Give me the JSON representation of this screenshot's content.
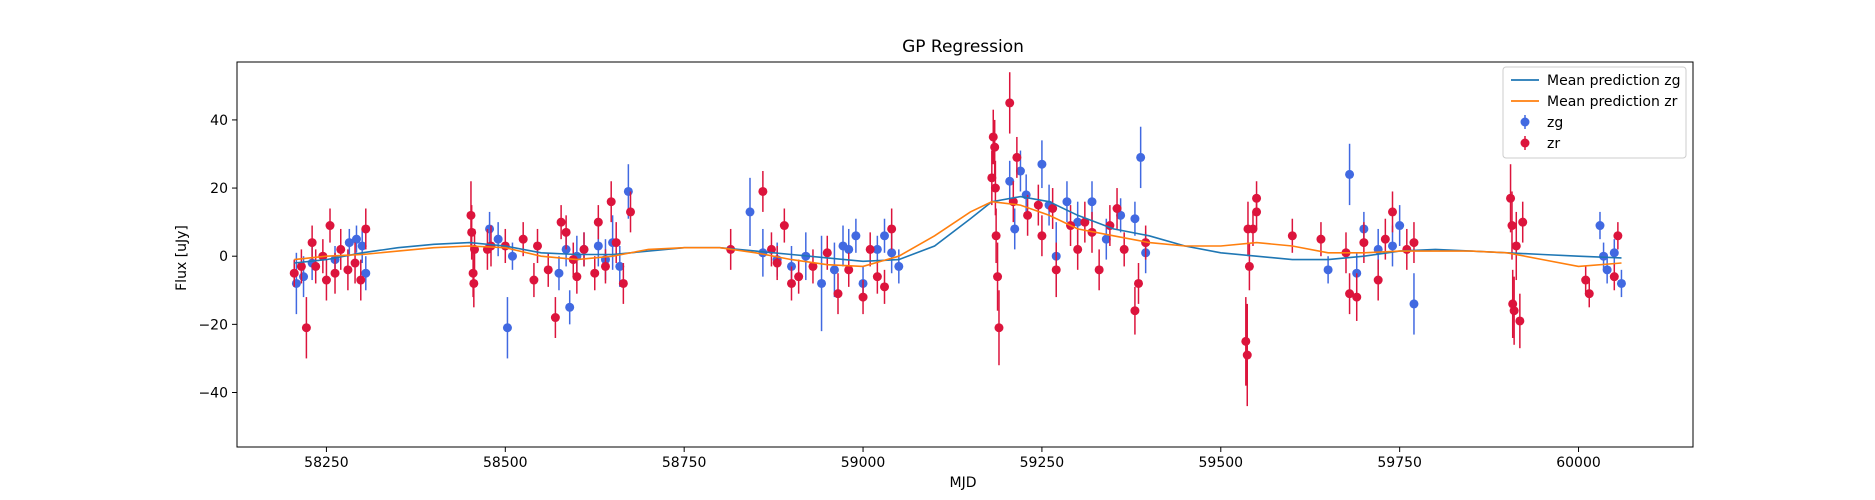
{
  "chart_data": {
    "type": "scatter",
    "title": "GP Regression",
    "xlabel": "MJD",
    "ylabel": "Flux [uJy]",
    "xlim": [
      58125,
      60160
    ],
    "ylim": [
      -56,
      57
    ],
    "x_ticks": [
      58250,
      58500,
      58750,
      59000,
      59250,
      59500,
      59750,
      60000
    ],
    "y_ticks": [
      -40,
      -20,
      0,
      20,
      40
    ],
    "grid": false,
    "legend_position": "top-right",
    "lines": [
      {
        "name": "Mean prediction zg",
        "color": "#1f77b4",
        "x": [
          58205,
          58250,
          58300,
          58350,
          58400,
          58450,
          58500,
          58550,
          58600,
          58650,
          58700,
          58750,
          58800,
          58850,
          58900,
          58950,
          59000,
          59050,
          59100,
          59150,
          59180,
          59220,
          59260,
          59300,
          59350,
          59400,
          59450,
          59500,
          59550,
          59600,
          59650,
          59700,
          59750,
          59800,
          59850,
          59900,
          59950,
          60000,
          60060
        ],
        "y": [
          -2,
          -1,
          1,
          2.5,
          3.5,
          4,
          3,
          1,
          0.5,
          0.5,
          1.5,
          2.5,
          2.5,
          1.5,
          0.5,
          -0.5,
          -1.5,
          -1,
          3,
          11,
          16,
          17.5,
          16,
          12,
          8,
          6,
          3,
          1,
          0,
          -1,
          -1,
          0,
          1.5,
          2,
          1.5,
          1,
          0.5,
          0,
          -0.5
        ]
      },
      {
        "name": "Mean prediction zr",
        "color": "#ff7f0e",
        "x": [
          58205,
          58250,
          58300,
          58350,
          58400,
          58450,
          58500,
          58550,
          58600,
          58650,
          58700,
          58750,
          58800,
          58850,
          58900,
          58950,
          59000,
          59050,
          59100,
          59150,
          59180,
          59220,
          59260,
          59300,
          59350,
          59400,
          59450,
          59500,
          59550,
          59600,
          59650,
          59700,
          59750,
          59800,
          59850,
          59900,
          59950,
          60000,
          60060
        ],
        "y": [
          -1,
          0,
          0.5,
          1.5,
          2.5,
          3,
          2.5,
          0,
          -1,
          0,
          2,
          2.5,
          2.5,
          1,
          -1,
          -2.5,
          -3,
          0,
          6,
          13,
          16,
          15,
          12,
          8,
          6,
          4,
          3,
          3,
          4,
          3,
          1,
          1,
          1.5,
          1.5,
          1.5,
          1,
          -1,
          -3,
          -2
        ]
      }
    ],
    "series": [
      {
        "name": "zg",
        "color": "#4169e1",
        "points": [
          [
            58208,
            -8,
            9
          ],
          [
            58218,
            -6,
            6
          ],
          [
            58230,
            -2,
            5
          ],
          [
            58262,
            -1,
            4
          ],
          [
            58282,
            4,
            4
          ],
          [
            58292,
            5,
            4
          ],
          [
            58300,
            3,
            5
          ],
          [
            58305,
            -5,
            5
          ],
          [
            58478,
            8,
            5
          ],
          [
            58490,
            5,
            5
          ],
          [
            58503,
            -21,
            9
          ],
          [
            58510,
            0,
            4
          ],
          [
            58575,
            -5,
            5
          ],
          [
            58585,
            2,
            5
          ],
          [
            58590,
            -15,
            5
          ],
          [
            58600,
            0,
            6
          ],
          [
            58610,
            2,
            5
          ],
          [
            58630,
            3,
            6
          ],
          [
            58640,
            -1,
            6
          ],
          [
            58650,
            4,
            8
          ],
          [
            58660,
            -3,
            6
          ],
          [
            58672,
            19,
            8
          ],
          [
            58842,
            13,
            10
          ],
          [
            58860,
            1,
            7
          ],
          [
            58880,
            -1,
            5
          ],
          [
            58900,
            -3,
            6
          ],
          [
            58920,
            0,
            7
          ],
          [
            58942,
            -8,
            14
          ],
          [
            58960,
            -4,
            8
          ],
          [
            58972,
            3,
            6
          ],
          [
            58980,
            2,
            6
          ],
          [
            58990,
            6,
            5
          ],
          [
            59000,
            -8,
            5
          ],
          [
            59020,
            2,
            4
          ],
          [
            59030,
            6,
            5
          ],
          [
            59040,
            1,
            6
          ],
          [
            59050,
            -3,
            5
          ],
          [
            59205,
            22,
            6
          ],
          [
            59212,
            8,
            6
          ],
          [
            59220,
            25,
            6
          ],
          [
            59228,
            18,
            6
          ],
          [
            59250,
            27,
            7
          ],
          [
            59260,
            15,
            6
          ],
          [
            59270,
            0,
            10
          ],
          [
            59285,
            16,
            6
          ],
          [
            59300,
            10,
            6
          ],
          [
            59320,
            16,
            6
          ],
          [
            59340,
            5,
            6
          ],
          [
            59360,
            12,
            5
          ],
          [
            59380,
            11,
            5
          ],
          [
            59388,
            29,
            9
          ],
          [
            59395,
            1,
            6
          ],
          [
            59650,
            -4,
            4
          ],
          [
            59680,
            24,
            9
          ],
          [
            59690,
            -5,
            6
          ],
          [
            59700,
            8,
            5
          ],
          [
            59720,
            2,
            6
          ],
          [
            59740,
            3,
            6
          ],
          [
            59750,
            9,
            6
          ],
          [
            59770,
            -14,
            9
          ],
          [
            60030,
            9,
            4
          ],
          [
            60035,
            0,
            4
          ],
          [
            60040,
            -4,
            4
          ],
          [
            60050,
            1,
            4
          ],
          [
            60060,
            -8,
            4
          ]
        ]
      },
      {
        "name": "zr",
        "color": "#dc143c",
        "points": [
          [
            58205,
            -5,
            4
          ],
          [
            58215,
            -3,
            5
          ],
          [
            58222,
            -21,
            9
          ],
          [
            58230,
            4,
            5
          ],
          [
            58235,
            -3,
            5
          ],
          [
            58245,
            0,
            5
          ],
          [
            58250,
            -7,
            6
          ],
          [
            58255,
            9,
            5
          ],
          [
            58262,
            -5,
            6
          ],
          [
            58270,
            2,
            6
          ],
          [
            58280,
            -4,
            6
          ],
          [
            58290,
            -2,
            6
          ],
          [
            58298,
            -7,
            6
          ],
          [
            58305,
            8,
            6
          ],
          [
            58452,
            12,
            10
          ],
          [
            58453,
            7,
            8
          ],
          [
            58455,
            -5,
            7
          ],
          [
            58456,
            -8,
            7
          ],
          [
            58457,
            2,
            6
          ],
          [
            58475,
            2,
            6
          ],
          [
            58480,
            3,
            6
          ],
          [
            58500,
            3,
            5
          ],
          [
            58525,
            5,
            5
          ],
          [
            58540,
            -7,
            5
          ],
          [
            58545,
            3,
            5
          ],
          [
            58560,
            -4,
            5
          ],
          [
            58570,
            -18,
            6
          ],
          [
            58578,
            10,
            5
          ],
          [
            58585,
            7,
            5
          ],
          [
            58595,
            -1,
            5
          ],
          [
            58600,
            -6,
            5
          ],
          [
            58610,
            2,
            5
          ],
          [
            58625,
            -5,
            5
          ],
          [
            58630,
            10,
            5
          ],
          [
            58640,
            -3,
            5
          ],
          [
            58648,
            16,
            6
          ],
          [
            58655,
            4,
            6
          ],
          [
            58665,
            -8,
            6
          ],
          [
            58675,
            13,
            6
          ],
          [
            58815,
            2,
            6
          ],
          [
            58860,
            19,
            6
          ],
          [
            58872,
            2,
            5
          ],
          [
            58880,
            -2,
            5
          ],
          [
            58890,
            9,
            5
          ],
          [
            58900,
            -8,
            5
          ],
          [
            58910,
            -6,
            5
          ],
          [
            58930,
            -3,
            5
          ],
          [
            58950,
            1,
            5
          ],
          [
            58965,
            -11,
            6
          ],
          [
            58980,
            -4,
            5
          ],
          [
            59000,
            -12,
            5
          ],
          [
            59010,
            2,
            5
          ],
          [
            59020,
            -6,
            5
          ],
          [
            59030,
            -9,
            5
          ],
          [
            59040,
            8,
            6
          ],
          [
            59180,
            23,
            8
          ],
          [
            59182,
            35,
            8
          ],
          [
            59184,
            32,
            8
          ],
          [
            59185,
            20,
            8
          ],
          [
            59186,
            6,
            8
          ],
          [
            59188,
            -6,
            10
          ],
          [
            59190,
            -21,
            11
          ],
          [
            59205,
            45,
            9
          ],
          [
            59210,
            16,
            6
          ],
          [
            59215,
            29,
            6
          ],
          [
            59230,
            12,
            6
          ],
          [
            59245,
            15,
            6
          ],
          [
            59250,
            6,
            6
          ],
          [
            59265,
            14,
            6
          ],
          [
            59270,
            -4,
            8
          ],
          [
            59290,
            9,
            6
          ],
          [
            59300,
            2,
            6
          ],
          [
            59310,
            10,
            6
          ],
          [
            59320,
            7,
            6
          ],
          [
            59330,
            -4,
            6
          ],
          [
            59345,
            9,
            6
          ],
          [
            59355,
            14,
            6
          ],
          [
            59365,
            2,
            5
          ],
          [
            59380,
            -16,
            7
          ],
          [
            59385,
            -8,
            6
          ],
          [
            59395,
            4,
            5
          ],
          [
            59535,
            -25,
            13
          ],
          [
            59537,
            -29,
            15
          ],
          [
            59538,
            8,
            8
          ],
          [
            59540,
            -3,
            7
          ],
          [
            59545,
            8,
            5
          ],
          [
            59550,
            17,
            5
          ],
          [
            59550,
            13,
            5
          ],
          [
            59600,
            6,
            5
          ],
          [
            59640,
            5,
            5
          ],
          [
            59675,
            1,
            6
          ],
          [
            59680,
            -11,
            6
          ],
          [
            59690,
            -12,
            7
          ],
          [
            59700,
            4,
            6
          ],
          [
            59720,
            -7,
            6
          ],
          [
            59730,
            5,
            6
          ],
          [
            59740,
            13,
            6
          ],
          [
            59760,
            2,
            6
          ],
          [
            59770,
            4,
            6
          ],
          [
            59905,
            17,
            10
          ],
          [
            59907,
            9,
            10
          ],
          [
            59908,
            -14,
            10
          ],
          [
            59910,
            -16,
            10
          ],
          [
            59913,
            3,
            10
          ],
          [
            59918,
            -19,
            8
          ],
          [
            59922,
            10,
            6
          ],
          [
            60010,
            -7,
            4
          ],
          [
            60015,
            -11,
            4
          ],
          [
            60050,
            -6,
            4
          ],
          [
            60055,
            6,
            4
          ]
        ]
      }
    ],
    "legend": [
      {
        "label": "Mean prediction zg",
        "kind": "line",
        "color": "#1f77b4"
      },
      {
        "label": "Mean prediction zr",
        "kind": "line",
        "color": "#ff7f0e"
      },
      {
        "label": "zg",
        "kind": "errorbar",
        "color": "#4169e1"
      },
      {
        "label": "zr",
        "kind": "errorbar",
        "color": "#dc143c"
      }
    ]
  }
}
